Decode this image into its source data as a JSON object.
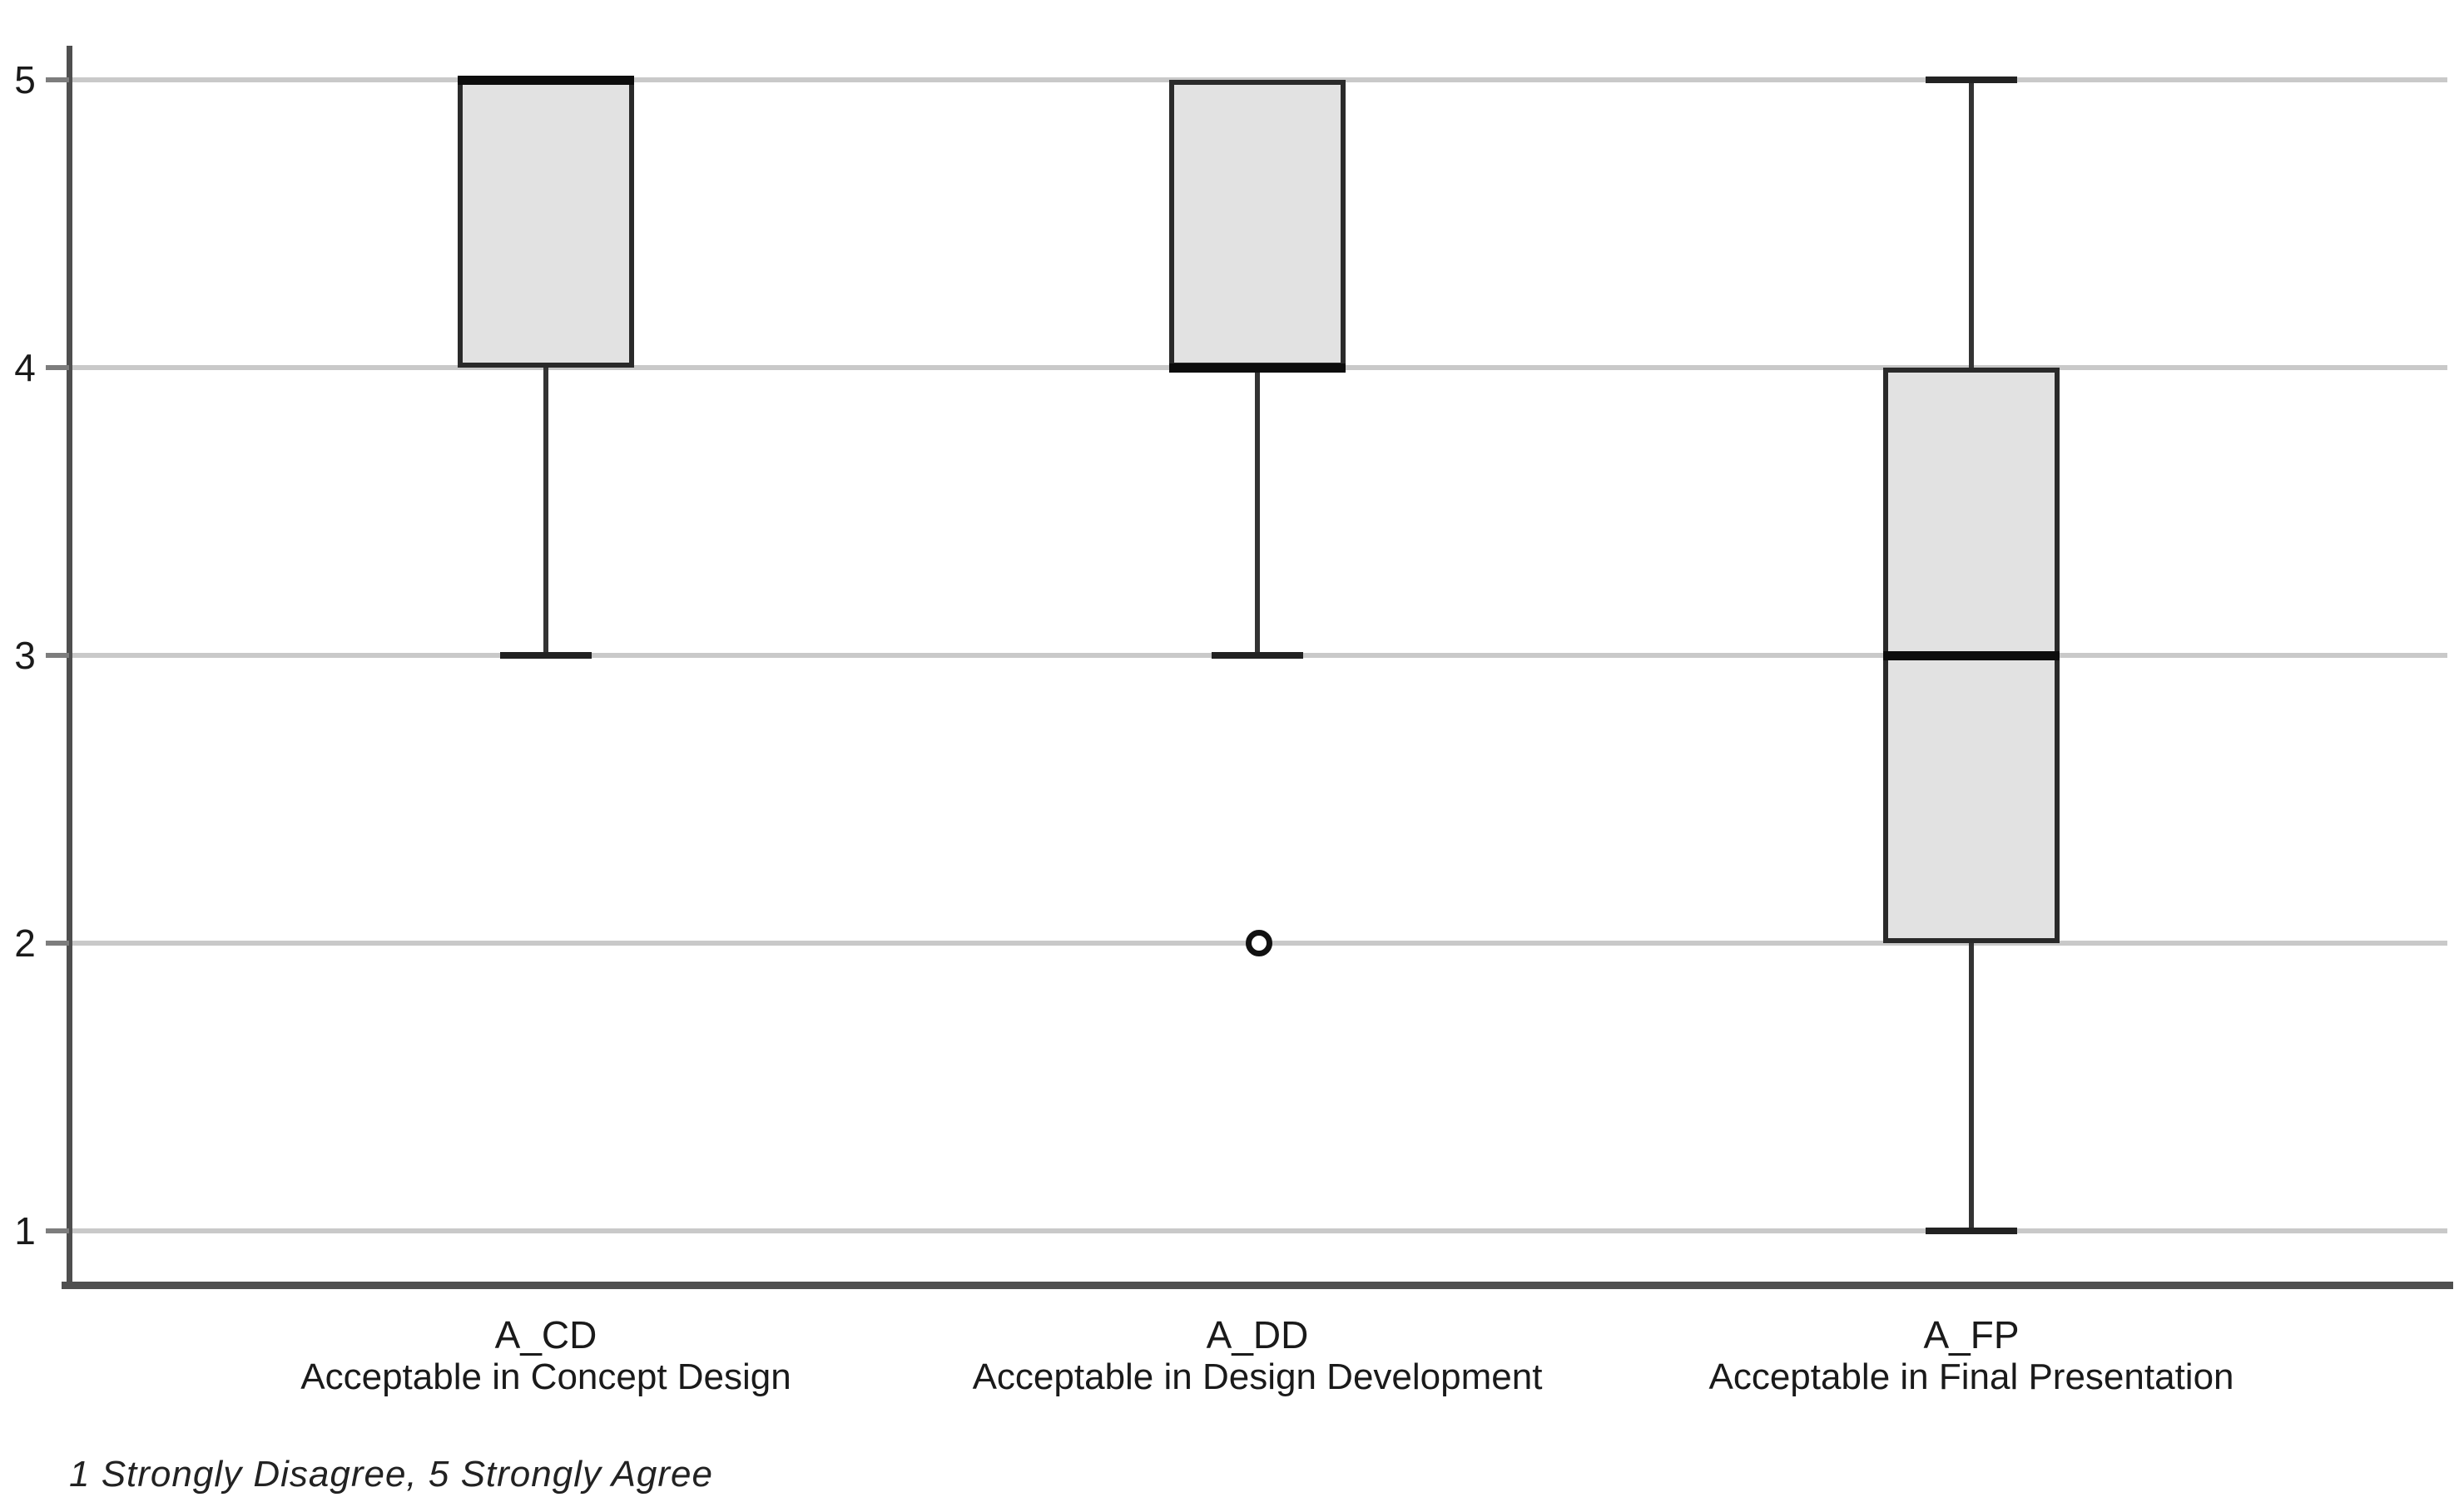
{
  "chart_data": {
    "type": "boxplot",
    "title": "",
    "xlabel": "",
    "ylabel": "",
    "ylim": [
      1,
      5
    ],
    "yticks": [
      "1",
      "2",
      "3",
      "4",
      "5"
    ],
    "ytick_values": [
      1,
      2,
      3,
      4,
      5
    ],
    "grid": "horizontal",
    "legend": "none",
    "footnote": "1 Strongly Disagree, 5 Strongly Agree",
    "categories": [
      "A_CD",
      "A_DD",
      "A_FP"
    ],
    "series": [
      {
        "code": "A_CD",
        "label": "Acceptable in Concept Design",
        "q1": 4,
        "median": 5,
        "q3": 5,
        "whisker_low": 3,
        "whisker_high": 5,
        "outliers": []
      },
      {
        "code": "A_DD",
        "label": "Acceptable in Design Development",
        "q1": 4,
        "median": 4,
        "q3": 5,
        "whisker_low": 3,
        "whisker_high": 5,
        "outliers": [
          2
        ]
      },
      {
        "code": "A_FP",
        "label": "Acceptable in Final Presentation",
        "q1": 2,
        "median": 3,
        "q3": 4,
        "whisker_low": 1,
        "whisker_high": 5,
        "outliers": []
      }
    ],
    "colors": {
      "box_fill": "#e2e2e2",
      "box_border": "#2a2a2a",
      "median": "#0d0d0d",
      "whisker": "#333333",
      "whisker_cap": "#222222",
      "outlier": "#111111",
      "gridline": "#c9c9c9",
      "axis": "#4f4f4f",
      "tick_mark": "#7d7d7d",
      "text": "#1a1a1a"
    }
  }
}
